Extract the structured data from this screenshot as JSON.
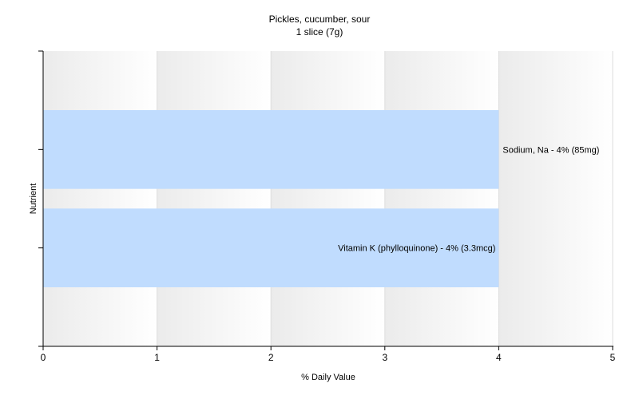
{
  "chart_data": {
    "type": "bar",
    "orientation": "horizontal",
    "title": "Pickles, cucumber, sour",
    "subtitle": "1 slice (7g)",
    "xlabel": "% Daily Value",
    "ylabel": "Nutrient",
    "xlim": [
      0,
      5
    ],
    "xticks": [
      "0",
      "1",
      "2",
      "3",
      "4",
      "5"
    ],
    "grid": true,
    "bar_color": "#c0dcfe",
    "bars": [
      {
        "value": 4,
        "label": "Sodium, Na - 4% (85mg)"
      },
      {
        "value": 4,
        "label": "Vitamin K (phylloquinone) - 4% (3.3mcg)"
      }
    ]
  }
}
